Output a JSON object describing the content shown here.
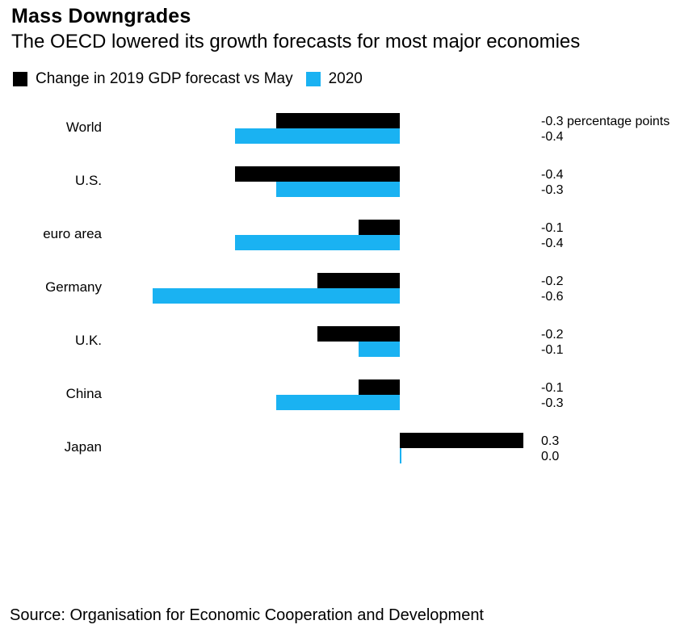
{
  "title": "Mass Downgrades",
  "subtitle": "The OECD lowered its growth forecasts for most major economies",
  "source": "Source: Organisation for Economic Cooperation and Development",
  "colors": {
    "series_2019": "#000000",
    "series_2020": "#1ab2f2"
  },
  "chart_data": {
    "type": "bar",
    "orientation": "horizontal",
    "categories": [
      "World",
      "U.S.",
      "euro area",
      "Germany",
      "U.K.",
      "China",
      "Japan"
    ],
    "series": [
      {
        "name": "Change in 2019 GDP forecast vs May",
        "color": "#000000",
        "values": [
          -0.3,
          -0.4,
          -0.1,
          -0.2,
          -0.2,
          -0.1,
          0.3
        ],
        "labels": [
          "-0.3 percentage points",
          "-0.4",
          "-0.1",
          "-0.2",
          "-0.2",
          "-0.1",
          "0.3"
        ]
      },
      {
        "name": "2020",
        "color": "#1ab2f2",
        "values": [
          -0.4,
          -0.3,
          -0.4,
          -0.6,
          -0.1,
          -0.3,
          0.0
        ],
        "labels": [
          "-0.4",
          "-0.3",
          "-0.4",
          "-0.6",
          "-0.1",
          "-0.3",
          "0.0"
        ]
      }
    ],
    "xlim": [
      -0.6,
      0.3
    ],
    "grid": false,
    "legend": "top-left"
  }
}
